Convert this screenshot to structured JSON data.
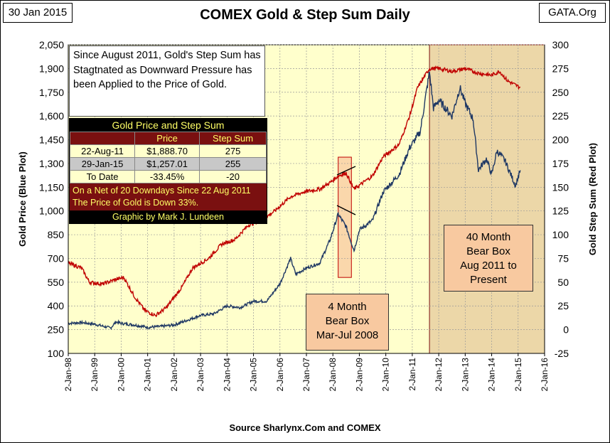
{
  "header": {
    "date": "30 Jan 2015",
    "title": "COMEX Gold & Step Sum Daily",
    "site": "GATA.Org"
  },
  "note": "Since August 2011, Gold's Step Sum has Stagtnated as Downward Pressure has been Applied to the Price of Gold.",
  "stats_table": {
    "title": "Gold Price and Step Sum",
    "col_price": "Price",
    "col_step": "Step Sum",
    "rows": [
      {
        "label": "22-Aug-11",
        "price": "$1,888.70",
        "step": "275"
      },
      {
        "label": "29-Jan-15",
        "price": "$1,257.01",
        "step": "255"
      },
      {
        "label": "To Date",
        "price": "-33.45%",
        "step": "-20"
      }
    ],
    "message_1": "On a Net of 20 Downdays Since 22 Aug 2011",
    "message_2": "The Price of Gold is Down 33%.",
    "credit": "Graphic by Mark J. Lundeen"
  },
  "bear_box_small": {
    "line1": "4 Month",
    "line2": "Bear Box",
    "line3": "Mar-Jul 2008"
  },
  "bear_box_large": {
    "line1": "40 Month",
    "line2": "Bear Box",
    "line3": "Aug 2011 to",
    "line4": "Present"
  },
  "source": "Source Sharlynx.Com and COMEX",
  "colors": {
    "gold_price": "#1f3864",
    "step_sum": "#c00000",
    "plot_bg": "#ffffcc",
    "bear_region": "#ecd7a8"
  },
  "chart_data": {
    "type": "line",
    "title": "COMEX Gold & Step Sum Daily",
    "xlabel": "",
    "ylabel": "Gold Price    (Blue Plot)",
    "y2label": "Gold Step Sum    (Red Plot)",
    "ylim": [
      100,
      2050
    ],
    "y2lim": [
      -25,
      300
    ],
    "yticks": [
      100,
      250,
      400,
      550,
      700,
      850,
      "1,000",
      "1,150",
      "1,300",
      "1,450",
      "1,600",
      "1,750",
      "1,900",
      "2,050"
    ],
    "y2ticks": [
      -25,
      0,
      25,
      50,
      75,
      100,
      125,
      150,
      175,
      200,
      225,
      250,
      275,
      300
    ],
    "xticks": [
      "2-Jan-98",
      "2-Jan-99",
      "2-Jan-00",
      "2-Jan-01",
      "2-Jan-02",
      "2-Jan-03",
      "2-Jan-04",
      "2-Jan-05",
      "2-Jan-06",
      "2-Jan-07",
      "2-Jan-08",
      "2-Jan-09",
      "2-Jan-10",
      "2-Jan-11",
      "2-Jan-12",
      "2-Jan-13",
      "2-Jan-14",
      "2-Jan-15",
      "2-Jan-16"
    ],
    "xlim": [
      1998,
      2016
    ],
    "regions": [
      {
        "name": "4 Month Bear Box",
        "x": [
          2008.2,
          2008.7
        ],
        "y": [
          580,
          1340
        ]
      },
      {
        "name": "40 Month Bear Box",
        "x": [
          2011.65,
          2016
        ],
        "y": [
          100,
          2050
        ]
      }
    ],
    "series": [
      {
        "name": "Gold Price",
        "axis": "left",
        "color": "#1f3864",
        "points": [
          [
            1998,
            290
          ],
          [
            1998.5,
            295
          ],
          [
            1999,
            285
          ],
          [
            1999.6,
            260
          ],
          [
            1999.8,
            300
          ],
          [
            2000,
            290
          ],
          [
            2000.5,
            280
          ],
          [
            2001,
            265
          ],
          [
            2001.5,
            270
          ],
          [
            2002,
            280
          ],
          [
            2002.5,
            310
          ],
          [
            2003,
            340
          ],
          [
            2003.5,
            350
          ],
          [
            2004,
            400
          ],
          [
            2004.5,
            390
          ],
          [
            2005,
            430
          ],
          [
            2005.5,
            430
          ],
          [
            2006,
            540
          ],
          [
            2006.4,
            700
          ],
          [
            2006.6,
            600
          ],
          [
            2007,
            640
          ],
          [
            2007.5,
            670
          ],
          [
            2007.9,
            820
          ],
          [
            2008.2,
            980
          ],
          [
            2008.5,
            900
          ],
          [
            2008.8,
            750
          ],
          [
            2009,
            880
          ],
          [
            2009.5,
            940
          ],
          [
            2009.9,
            1120
          ],
          [
            2010.5,
            1230
          ],
          [
            2010.9,
            1400
          ],
          [
            2011.3,
            1500
          ],
          [
            2011.65,
            1880
          ],
          [
            2011.8,
            1650
          ],
          [
            2012,
            1700
          ],
          [
            2012.5,
            1600
          ],
          [
            2012.8,
            1780
          ],
          [
            2013,
            1680
          ],
          [
            2013.3,
            1580
          ],
          [
            2013.5,
            1260
          ],
          [
            2013.8,
            1330
          ],
          [
            2014,
            1230
          ],
          [
            2014.2,
            1380
          ],
          [
            2014.5,
            1320
          ],
          [
            2014.8,
            1200
          ],
          [
            2014.9,
            1160
          ],
          [
            2015.08,
            1257
          ]
        ]
      },
      {
        "name": "Step Sum",
        "axis": "right",
        "color": "#c00000",
        "points": [
          [
            1998,
            70
          ],
          [
            1998.5,
            65
          ],
          [
            1998.8,
            50
          ],
          [
            1999.3,
            48
          ],
          [
            1999.7,
            52
          ],
          [
            2000.1,
            55
          ],
          [
            2000.5,
            35
          ],
          [
            2000.9,
            20
          ],
          [
            2001.3,
            15
          ],
          [
            2001.7,
            23
          ],
          [
            2002.3,
            45
          ],
          [
            2002.7,
            65
          ],
          [
            2003.3,
            75
          ],
          [
            2003.8,
            90
          ],
          [
            2004.3,
            95
          ],
          [
            2004.8,
            110
          ],
          [
            2005.3,
            115
          ],
          [
            2005.8,
            125
          ],
          [
            2006.4,
            140
          ],
          [
            2006.9,
            145
          ],
          [
            2007.5,
            148
          ],
          [
            2007.9,
            155
          ],
          [
            2008.2,
            162
          ],
          [
            2008.5,
            165
          ],
          [
            2008.8,
            148
          ],
          [
            2009,
            152
          ],
          [
            2009.5,
            162
          ],
          [
            2009.9,
            182
          ],
          [
            2010.5,
            195
          ],
          [
            2010.9,
            225
          ],
          [
            2011.2,
            255
          ],
          [
            2011.65,
            275
          ],
          [
            2012,
            275
          ],
          [
            2012.5,
            272
          ],
          [
            2013,
            275
          ],
          [
            2013.5,
            270
          ],
          [
            2014,
            268
          ],
          [
            2014.3,
            272
          ],
          [
            2014.6,
            262
          ],
          [
            2015.08,
            255
          ]
        ]
      }
    ]
  }
}
